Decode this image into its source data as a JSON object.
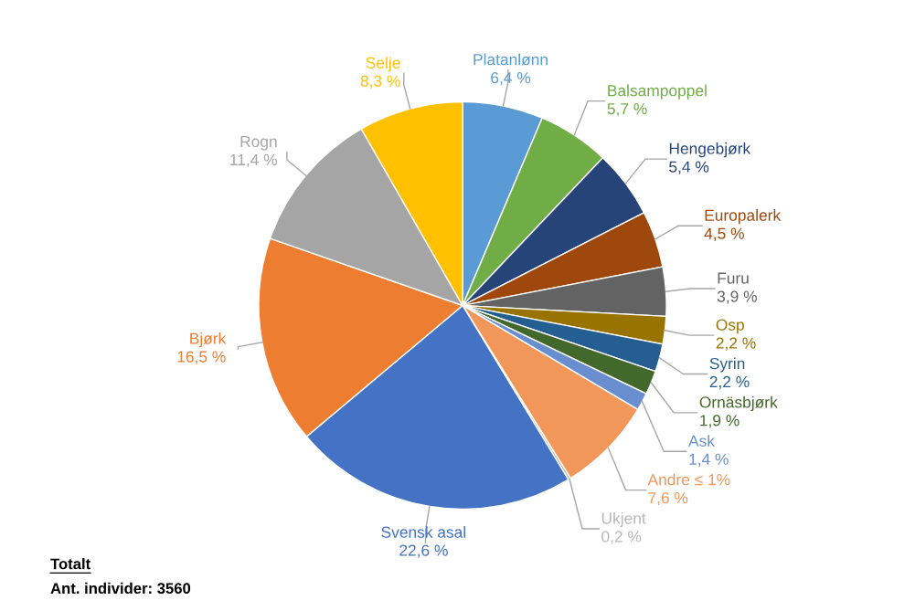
{
  "chart_data": {
    "type": "pie",
    "categories": [
      "Platanlønn",
      "Balsampoppel",
      "Hengebjørk",
      "Europalerk",
      "Furu",
      "Osp",
      "Syrin",
      "Ornäsbjørk",
      "Ask",
      "Andre ≤ 1%",
      "Ukjent",
      "Svensk asal",
      "Bjørk",
      "Rogn",
      "Selje"
    ],
    "values": [
      6.4,
      5.7,
      5.4,
      4.5,
      3.9,
      2.2,
      2.2,
      1.9,
      1.4,
      7.6,
      0.2,
      22.6,
      16.5,
      11.4,
      8.3
    ],
    "colors": [
      "#5b9bd5",
      "#70ad47",
      "#264478",
      "#9e480e",
      "#636363",
      "#997300",
      "#255e91",
      "#43682b",
      "#698ed0",
      "#f1975a",
      "#b7b7b7",
      "#4472c4",
      "#ed7d31",
      "#a5a5a5",
      "#ffc000"
    ],
    "value_labels": [
      "6,4 %",
      "5,7 %",
      "5,4 %",
      "4,5 %",
      "3,9 %",
      "2,2 %",
      "2,2 %",
      "1,9 %",
      "1,4 %",
      "7,6 %",
      "0,2 %",
      "22,6 %",
      "16,5 %",
      "11,4 %",
      "8,3 %"
    ],
    "annotations": [
      "Totalt",
      "Ant. individer: 3560"
    ],
    "legend": false
  }
}
